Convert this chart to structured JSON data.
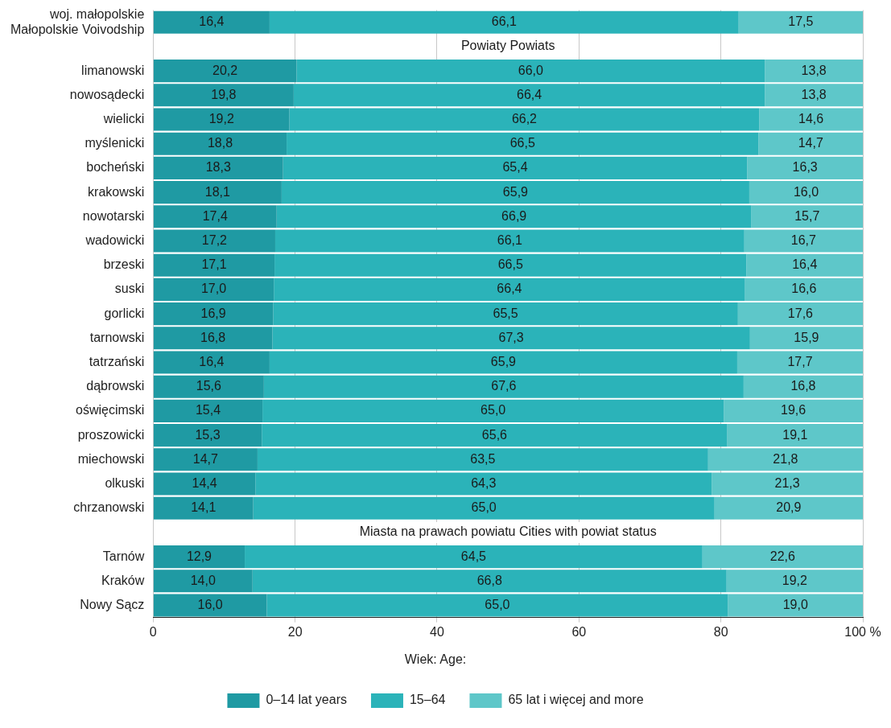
{
  "chart_data": {
    "type": "bar",
    "orientation": "horizontal",
    "stacked": true,
    "legend": "bottom",
    "legend_title": "Wiek: Age:",
    "grid": "x",
    "categories": [
      "woj. małopolskie\nMałopolskie Voivodship",
      null,
      "limanowski",
      "nowosądecki",
      "wielicki",
      "myślenicki",
      "bocheński",
      "krakowski",
      "nowotarski",
      "wadowicki",
      "brzeski",
      "suski",
      "gorlicki",
      "tarnowski",
      "tatrzański",
      "dąbrowski",
      "oświęcimski",
      "proszowicki",
      "miechowski",
      "olkuski",
      "chrzanowski",
      null,
      "Tarnów",
      "Kraków",
      "Nowy Sącz"
    ],
    "annotations": [
      "Powiaty Powiats",
      "Miasta na prawach powiatu Cities with powiat status"
    ],
    "xlim": [
      0,
      100
    ],
    "xticks": [
      0,
      20,
      40,
      60,
      80,
      {
        "value": 100,
        "label": "100 %"
      }
    ],
    "series": [
      {
        "name": "0–14 lat\nyears",
        "color": "#1f9aa3",
        "values": [
          16.4,
          null,
          20.2,
          19.8,
          19.2,
          18.8,
          18.3,
          18.1,
          17.4,
          17.2,
          17.1,
          17.0,
          16.9,
          16.8,
          16.4,
          15.6,
          15.4,
          15.3,
          14.7,
          14.4,
          14.1,
          null,
          12.9,
          14.0,
          16.0
        ],
        "value_labels": [
          "16,4",
          null,
          "20,2",
          "19,8",
          "19,2",
          "18,8",
          "18,3",
          "18,1",
          "17,4",
          "17,2",
          "17,1",
          "17,0",
          "16,9",
          "16,8",
          "16,4",
          "15,6",
          "15,4",
          "15,3",
          "14,7",
          "14,4",
          "14,1",
          null,
          "12,9",
          "14,0",
          "16,0"
        ]
      },
      {
        "name": "15–64",
        "color": "#2bb3b9",
        "values": [
          66.1,
          null,
          66.0,
          66.4,
          66.2,
          66.5,
          65.4,
          65.9,
          66.9,
          66.1,
          66.5,
          66.4,
          65.5,
          67.3,
          65.9,
          67.6,
          65.0,
          65.6,
          63.5,
          64.3,
          65.0,
          null,
          64.5,
          66.8,
          65.0
        ],
        "value_labels": [
          "66,1",
          null,
          "66,0",
          "66,4",
          "66,2",
          "66,5",
          "65,4",
          "65,9",
          "66,9",
          "66,1",
          "66,5",
          "66,4",
          "65,5",
          "67,3",
          "65,9",
          "67,6",
          "65,0",
          "65,6",
          "63,5",
          "64,3",
          "65,0",
          null,
          "64,5",
          "66,8",
          "65,0"
        ]
      },
      {
        "name": "65 lat i więcej\nand more",
        "color": "#5ec7c9",
        "values": [
          17.5,
          null,
          13.8,
          13.8,
          14.6,
          14.7,
          16.3,
          16.0,
          15.7,
          16.7,
          16.4,
          16.6,
          17.6,
          15.9,
          17.7,
          16.8,
          19.6,
          19.1,
          21.8,
          21.3,
          20.9,
          null,
          22.6,
          19.2,
          19.0
        ],
        "value_labels": [
          "17,5",
          null,
          "13,8",
          "13,8",
          "14,6",
          "14,7",
          "16,3",
          "16,0",
          "15,7",
          "16,7",
          "16,4",
          "16,6",
          "17,6",
          "15,9",
          "17,7",
          "16,8",
          "19,6",
          "19,1",
          "21,8",
          "21,3",
          "20,9",
          null,
          "22,6",
          "19,2",
          "19,0"
        ]
      }
    ]
  }
}
